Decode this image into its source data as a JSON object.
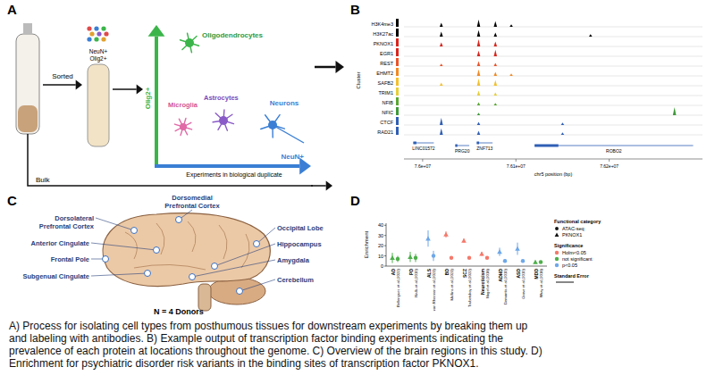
{
  "panels": {
    "A": {
      "letter": "A",
      "sorted": "Sorted",
      "bulk": "Bulk",
      "antibodies": [
        "NeuN+",
        "Olig2+"
      ],
      "olig_axis": "Olig2+",
      "neun_axis": "NeuN+",
      "cells": [
        "Oligodendrocytes",
        "Microglia",
        "Astrocytes",
        "Neurons"
      ],
      "note": "Experiments in biological duplicate"
    },
    "B": {
      "letter": "B",
      "cluster_label": "Cluster",
      "x_label": "chr5 position (bp)",
      "xlim": [
        75980000,
        76300000
      ],
      "xticks": [
        {
          "value": 76000000,
          "label": "7.6e+07"
        },
        {
          "value": 76100000,
          "label": "7.61e+07"
        },
        {
          "value": 76200000,
          "label": "7.62e+07"
        }
      ],
      "tracks": [
        {
          "name": "H3K4me3",
          "color": "#000000",
          "peaks": [
            [
              76020000,
              0.5
            ],
            [
              76060000,
              0.9
            ],
            [
              76078000,
              0.7
            ],
            [
              76095000,
              0.3
            ]
          ]
        },
        {
          "name": "H3K27ac",
          "color": "#000000",
          "peaks": [
            [
              76020000,
              0.6
            ],
            [
              76060000,
              0.8
            ],
            [
              76078000,
              0.5
            ],
            [
              76180000,
              0.3
            ]
          ]
        },
        {
          "name": "PKNOX1",
          "color": "#d7261e",
          "peaks": [
            [
              76020000,
              0.5
            ],
            [
              76060000,
              0.9
            ],
            [
              76078000,
              0.6
            ]
          ]
        },
        {
          "name": "EGR1",
          "color": "#d7261e",
          "peaks": [
            [
              76060000,
              0.7
            ],
            [
              76078000,
              0.8
            ]
          ]
        },
        {
          "name": "REST",
          "color": "#e8542a",
          "peaks": [
            [
              76020000,
              0.3
            ],
            [
              76060000,
              0.6
            ],
            [
              76078000,
              0.4
            ]
          ]
        },
        {
          "name": "EHMT2",
          "color": "#f08a24",
          "peaks": [
            [
              76060000,
              0.8
            ],
            [
              76078000,
              0.5
            ],
            [
              76095000,
              0.3
            ]
          ]
        },
        {
          "name": "SAFB2",
          "color": "#f2c12e",
          "peaks": [
            [
              76020000,
              0.4
            ],
            [
              76060000,
              0.9
            ],
            [
              76078000,
              0.7
            ]
          ]
        },
        {
          "name": "TRIM1",
          "color": "#e6cf3a",
          "peaks": [
            [
              76060000,
              0.6
            ],
            [
              76078000,
              0.4
            ]
          ]
        },
        {
          "name": "NFIB",
          "color": "#5aa832",
          "peaks": [
            [
              76060000,
              0.4
            ],
            [
              76078000,
              0.3
            ]
          ]
        },
        {
          "name": "NFIC",
          "color": "#3f9a3a",
          "peaks": [
            [
              76060000,
              0.3
            ],
            [
              76270000,
              1.0
            ]
          ]
        },
        {
          "name": "CTCF",
          "color": "#2f5fb5",
          "peaks": [
            [
              76020000,
              0.9
            ],
            [
              76060000,
              0.4
            ],
            [
              76150000,
              0.3
            ]
          ]
        },
        {
          "name": "RAD21",
          "color": "#2f5fb5",
          "peaks": [
            [
              76020000,
              0.8
            ],
            [
              76060000,
              0.5
            ],
            [
              76150000,
              0.3
            ]
          ]
        }
      ],
      "genes": [
        {
          "name": "LINC01572",
          "start": 75990000,
          "end": 76012000
        },
        {
          "name": "PRG20",
          "start": 76035000,
          "end": 76050000
        },
        {
          "name": "ZNF713",
          "start": 76058000,
          "end": 76075000
        },
        {
          "name": "ROBO2",
          "start": 76120000,
          "end": 76290000
        }
      ]
    },
    "C": {
      "letter": "C",
      "regions": [
        "Dorsolateral Prefrontal Cortex",
        "Dorsomedial Prefrontal Cortex",
        "Anterior Cingulate",
        "Frontal Pole",
        "Subgenual Cingulate",
        "Occipital Lobe",
        "Hippocampus",
        "Amygdala",
        "Cerebellum"
      ],
      "donors": "N = 4 Donors"
    },
    "D": {
      "letter": "D"
    }
  },
  "chart_data": {
    "type": "point",
    "y_label": "Enrichment",
    "categories": [
      "AD",
      "PD",
      "ALS",
      "BD",
      "SCZ",
      "Neuroticism",
      "ADHD",
      "ASD",
      "MDD"
    ],
    "category_citations": [
      "Bellenguez et al.(2022)",
      "Nalls et al.(2019)",
      "van Rheenen et al.(2021)",
      "Mullins et al.(2021)",
      "Trubetskoy et al.(2022)",
      "Nagel et al.(2018)",
      "Demontis et al.(2019)",
      "Grove et al.(2019)",
      "Wray et al.(2018)"
    ],
    "ylim": [
      0,
      42
    ],
    "yticks": [
      0,
      10,
      20,
      30,
      40
    ],
    "grid": false,
    "legend": "right",
    "legend_title": "Functional category",
    "series": [
      {
        "name": "ATAC-seq",
        "marker": "circle",
        "values": [
          7,
          8,
          10,
          8,
          8,
          8,
          5,
          5,
          4
        ],
        "errors": [
          3,
          4,
          5,
          1,
          0.8,
          1,
          1.5,
          1.5,
          1
        ],
        "colors": [
          "#4daf4a",
          "#4daf4a",
          "#6ea7e8",
          "#f4796b",
          "#f4796b",
          "#f4796b",
          "#6ea7e8",
          "#6ea7e8",
          "#4daf4a"
        ]
      },
      {
        "name": "PKNOX1",
        "marker": "triangle",
        "values": [
          8,
          9,
          27,
          31,
          25,
          12,
          14,
          17,
          4
        ],
        "errors": [
          5,
          5,
          8,
          3,
          2,
          2,
          4,
          6,
          1.5
        ],
        "colors": [
          "#4daf4a",
          "#4daf4a",
          "#6ea7e8",
          "#f4796b",
          "#f4796b",
          "#f4796b",
          "#6ea7e8",
          "#6ea7e8",
          "#4daf4a"
        ]
      }
    ],
    "significance": {
      "title": "Significance",
      "levels": [
        {
          "name": "Holm<0.05",
          "color": "#f4796b"
        },
        {
          "name": "not significant",
          "color": "#4daf4a"
        },
        {
          "name": "p<0.05",
          "color": "#6ea7e8"
        }
      ]
    },
    "error_label": "Standard Error"
  },
  "caption": "A) Process for isolating cell types from posthumous tissues for downstream experiments by breaking them up and labeling with antibodies. B) Example output of transcription factor binding experiments indicating the prevalence of each protein at locations throughout the genome. C) Overview of the brain regions in this study. D) Enrichment for psychiatric disorder risk variants in the binding sites of transcription factor PKNOX1."
}
